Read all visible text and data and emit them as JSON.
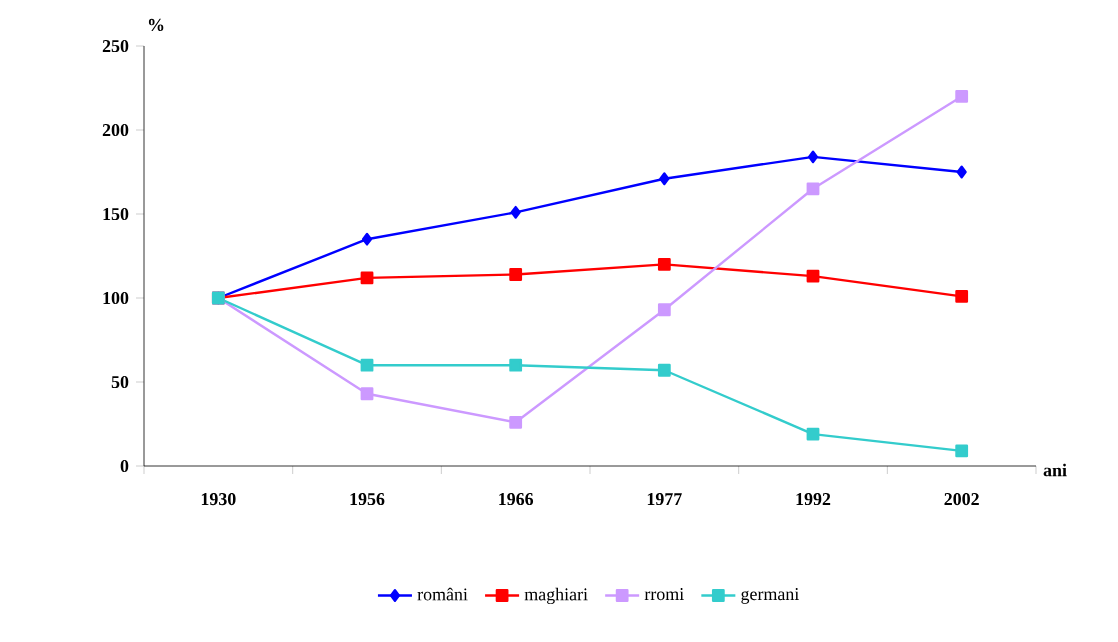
{
  "chart_data": {
    "type": "line",
    "xlabel": "ani",
    "ylabel": "%",
    "categories": [
      "1930",
      "1956",
      "1966",
      "1977",
      "1992",
      "2002"
    ],
    "series": [
      {
        "name": "români",
        "color": "#0000ff",
        "marker": "diamond",
        "values": [
          100,
          135,
          151,
          171,
          184,
          175
        ]
      },
      {
        "name": "maghiari",
        "color": "#ff0000",
        "marker": "square",
        "values": [
          100,
          112,
          114,
          120,
          113,
          101
        ]
      },
      {
        "name": "rromi",
        "color": "#cc99ff",
        "marker": "square",
        "values": [
          100,
          43,
          26,
          93,
          165,
          220
        ]
      },
      {
        "name": "germani",
        "color": "#33cccc",
        "marker": "square",
        "values": [
          100,
          60,
          60,
          57,
          19,
          9
        ]
      }
    ],
    "ylim": [
      0,
      250
    ],
    "yticks": [
      0,
      50,
      100,
      150,
      200,
      250
    ],
    "grid": false,
    "legend": "bottom",
    "line_style": "solid"
  }
}
